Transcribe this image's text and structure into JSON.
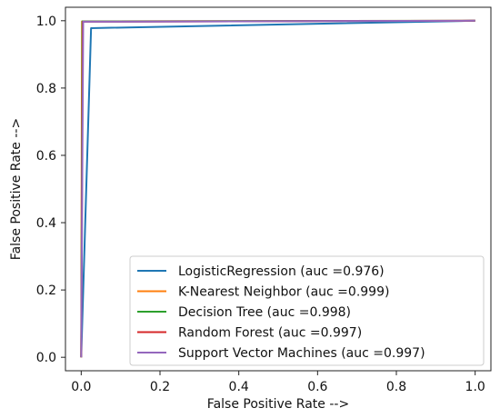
{
  "chart_data": {
    "type": "line",
    "title": "",
    "xlabel": "False Positive Rate -->",
    "ylabel": "False Positive Rate -->",
    "xlim": [
      -0.04,
      1.04
    ],
    "ylim": [
      -0.04,
      1.04
    ],
    "x_ticks": [
      0.0,
      0.2,
      0.4,
      0.6,
      0.8,
      1.0
    ],
    "x_tick_labels": [
      "0.0",
      "0.2",
      "0.4",
      "0.6",
      "0.8",
      "1.0"
    ],
    "y_ticks": [
      0.0,
      0.2,
      0.4,
      0.6,
      0.8,
      1.0
    ],
    "y_tick_labels": [
      "0.0",
      "0.2",
      "0.4",
      "0.6",
      "0.8",
      "1.0"
    ],
    "grid": false,
    "legend_position": "lower-right",
    "series": [
      {
        "name": "LogisticRegression (auc =0.976)",
        "color": "#1f77b4",
        "points": [
          [
            0.0,
            0.0
          ],
          [
            0.025,
            0.978
          ],
          [
            1.0,
            1.0
          ]
        ]
      },
      {
        "name": "K-Nearest Neighbor (auc =0.999)",
        "color": "#ff7f0e",
        "points": [
          [
            0.0,
            0.0
          ],
          [
            0.002,
            0.998
          ],
          [
            1.0,
            1.0
          ]
        ]
      },
      {
        "name": "Decision Tree (auc =0.998)",
        "color": "#2ca02c",
        "points": [
          [
            0.0,
            0.0
          ],
          [
            0.003,
            0.998
          ],
          [
            1.0,
            1.0
          ]
        ]
      },
      {
        "name": "Random Forest (auc =0.997)",
        "color": "#d62728",
        "points": [
          [
            0.0,
            0.0
          ],
          [
            0.004,
            0.997
          ],
          [
            1.0,
            1.0
          ]
        ]
      },
      {
        "name": "Support Vector Machines (auc =0.997)",
        "color": "#9467bd",
        "points": [
          [
            0.0,
            0.0
          ],
          [
            0.005,
            0.997
          ],
          [
            1.0,
            1.0
          ]
        ]
      }
    ]
  }
}
